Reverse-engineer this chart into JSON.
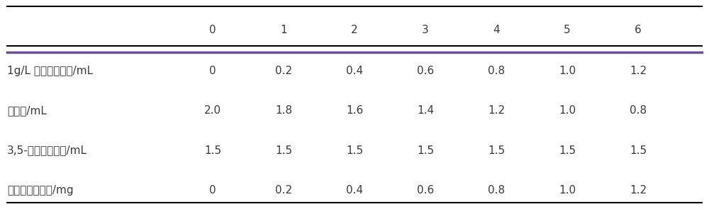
{
  "col_headers": [
    "",
    "0",
    "1",
    "2",
    "3",
    "4",
    "5",
    "6"
  ],
  "rows": [
    [
      "1g/L 葡萄糖标准液/mL",
      "0",
      "0.2",
      "0.4",
      "0.6",
      "0.8",
      "1.0",
      "1.2"
    ],
    [
      "蒸馏水/mL",
      "2.0",
      "1.8",
      "1.6",
      "1.4",
      "1.2",
      "1.0",
      "0.8"
    ],
    [
      "3,5-二硝基水杨酸/mL",
      "1.5",
      "1.5",
      "1.5",
      "1.5",
      "1.5",
      "1.5",
      "1.5"
    ],
    [
      "相当于葡萄糖量/mg",
      "0",
      "0.2",
      "0.4",
      "0.6",
      "0.8",
      "1.0",
      "1.2"
    ]
  ],
  "bg_color": "#ffffff",
  "header_line_color": "#6b4c9a",
  "border_line_color": "#000000",
  "text_color": "#3a3a3a",
  "font_size": 11,
  "header_font_size": 11,
  "fig_width": 10.0,
  "fig_height": 2.96,
  "dpi": 100
}
